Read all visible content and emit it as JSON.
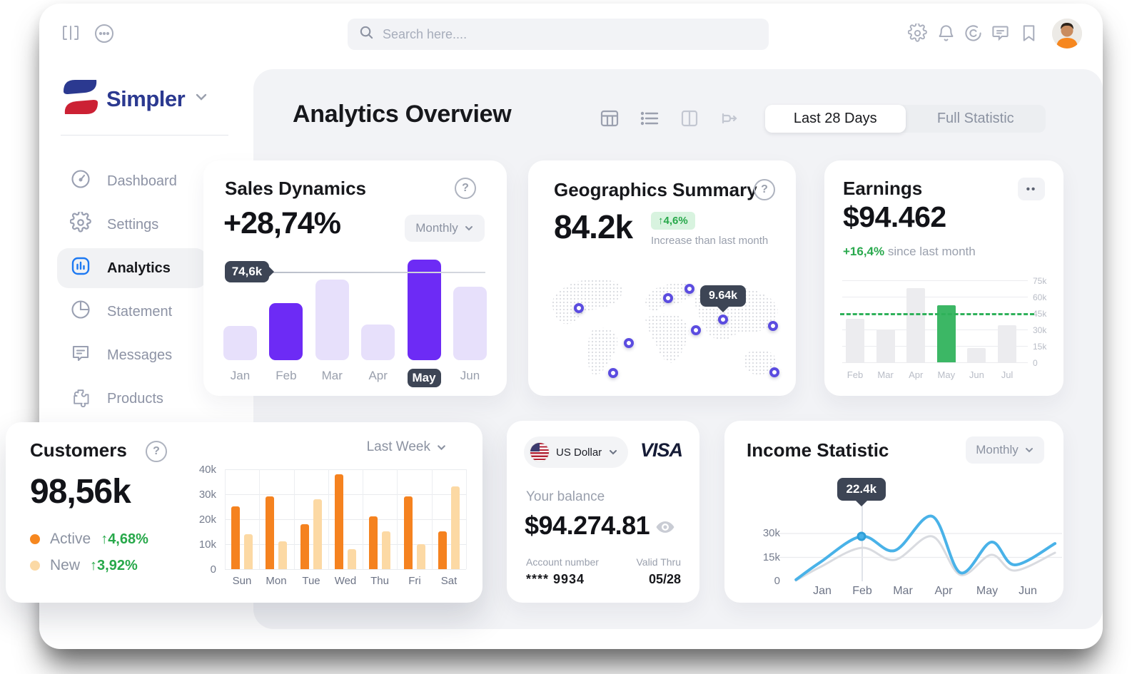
{
  "colors": {
    "accent_purple": "#6d2bf5",
    "light_purple": "#e7e0fb",
    "slate_tooltip": "#3d4555",
    "green": "#27a84a",
    "green_bar": "#3cb765",
    "orange": "#f6871f",
    "light_orange": "#fbd9a5",
    "blue_line": "#49b2e8",
    "gray_line": "#d9dbe0",
    "brand_navy": "#2b3990",
    "brand_red": "#cc2134",
    "active_icon_blue": "#1d79f2",
    "panel_bg": "#f2f3f6"
  },
  "topbar": {
    "search_placeholder": "Search here....",
    "icons_left": [
      "sidebar-toggle",
      "more-options"
    ],
    "icons_right": [
      "settings",
      "notifications",
      "copyright",
      "comments",
      "bookmarks"
    ]
  },
  "sidebar": {
    "brand": "Simpler",
    "items": [
      {
        "label": "Dashboard",
        "icon": "gauge",
        "active": false
      },
      {
        "label": "Settings",
        "icon": "gear",
        "active": false
      },
      {
        "label": "Analytics",
        "icon": "bars",
        "active": true
      },
      {
        "label": "Statement",
        "icon": "pie",
        "active": false
      },
      {
        "label": "Messages",
        "icon": "chat",
        "active": false
      },
      {
        "label": "Products",
        "icon": "puzzle",
        "active": false
      }
    ]
  },
  "header": {
    "title": "Analytics Overview",
    "range_active": "Last 28 Days",
    "range_inactive": "Full Statistic"
  },
  "cards": {
    "sales": {
      "title": "Sales Dynamics",
      "value": "+28,74%",
      "period": "Monthly",
      "tooltip": "74,6k"
    },
    "geo": {
      "title": "Geographics Summary",
      "value": "84.2k",
      "badge": "↑4,6%",
      "caption": "Increase than last month",
      "tooltip": "9.64k"
    },
    "earnings": {
      "title": "Earnings",
      "value": "$94.462",
      "delta": "+16,4%",
      "caption": " since last month",
      "more": "••"
    },
    "customers": {
      "title": "Customers",
      "value": "98,56k",
      "legend": [
        {
          "label": "Active",
          "delta": "↑4,68%"
        },
        {
          "label": "New",
          "delta": "↑3,92%"
        }
      ],
      "period": "Last Week"
    },
    "balance": {
      "currency": "US Dollar",
      "network": "VISA",
      "balance_label": "Your balance",
      "balance_value": "$94.274.81",
      "account_label": "Account number",
      "account_value": "**** 9934",
      "valid_label": "Valid Thru",
      "valid_value": "05/28"
    },
    "income": {
      "title": "Income Statistic",
      "period": "Monthly",
      "tooltip": "22.4k"
    }
  },
  "chart_data": [
    {
      "id": "sales",
      "type": "bar",
      "title": "Sales Dynamics",
      "categories": [
        "Jan",
        "Feb",
        "Mar",
        "Apr",
        "May",
        "Jun"
      ],
      "values": [
        29,
        48,
        68,
        30,
        85,
        62
      ],
      "unit": "k",
      "ylim": [
        0,
        85
      ],
      "highlighted": [
        "Feb",
        "May"
      ],
      "highlight_label": "May",
      "reference_line": 74.6,
      "reference_label": "74,6k",
      "grid": false,
      "legend_position": "none"
    },
    {
      "id": "earnings",
      "type": "bar",
      "title": "Earnings",
      "categories": [
        "Feb",
        "Mar",
        "Apr",
        "May",
        "Jun",
        "Jul"
      ],
      "values": [
        40,
        30,
        68,
        52,
        13,
        34
      ],
      "unit": "k",
      "ylim": [
        0,
        75
      ],
      "yticks": [
        "75k",
        "60k",
        "45k",
        "30k",
        "15k",
        "0"
      ],
      "highlighted": [
        "May"
      ],
      "dashed_line": 45,
      "grid": true,
      "legend_position": "none"
    },
    {
      "id": "customers",
      "type": "bar",
      "title": "Customers",
      "categories": [
        "Sun",
        "Mon",
        "Tue",
        "Wed",
        "Thu",
        "Fri",
        "Sat"
      ],
      "series": [
        {
          "name": "Active",
          "values": [
            25,
            29,
            18,
            38,
            21,
            29,
            15
          ]
        },
        {
          "name": "New",
          "values": [
            14,
            11,
            28,
            8,
            15,
            10,
            33
          ]
        }
      ],
      "unit": "k",
      "ylim": [
        0,
        40
      ],
      "yticks": [
        "40k",
        "30k",
        "20k",
        "10k",
        "0"
      ],
      "grid": true,
      "legend_position": "left"
    },
    {
      "id": "income",
      "type": "line",
      "title": "Income Statistic",
      "categories": [
        "Jan",
        "Feb",
        "Mar",
        "Apr",
        "May",
        "Jun"
      ],
      "yticks": [
        "30k",
        "15k",
        "0"
      ],
      "ylim": [
        0,
        45
      ],
      "unit": "k",
      "tooltip": {
        "label": "22.4k",
        "at_category": "Feb"
      },
      "series": [
        {
          "name": "income",
          "points": [
            [
              4,
              1
            ],
            [
              13,
              12
            ],
            [
              28.1,
              28.2
            ],
            [
              40.4,
              19.3
            ],
            [
              54.2,
              40.8
            ],
            [
              64.6,
              5.4
            ],
            [
              76,
              24.6
            ],
            [
              84.6,
              10.3
            ],
            [
              99.5,
              23.7
            ]
          ]
        },
        {
          "name": "previous",
          "points": [
            [
              4,
              0.5
            ],
            [
              13,
              9
            ],
            [
              28.1,
              21
            ],
            [
              40.4,
              13.4
            ],
            [
              54.2,
              28.2
            ],
            [
              64.6,
              4
            ],
            [
              76,
              16.6
            ],
            [
              84.6,
              6.7
            ],
            [
              99.5,
              17.9
            ]
          ]
        }
      ],
      "grid": true,
      "legend_position": "none"
    },
    {
      "id": "geo-map",
      "type": "scatter",
      "title": "Geographics Summary",
      "points_pct": [
        {
          "x": 15.6,
          "y": 32.5
        },
        {
          "x": 52.4,
          "y": 24.4
        },
        {
          "x": 61.2,
          "y": 16.9
        },
        {
          "x": 75.0,
          "y": 42.5
        },
        {
          "x": 63.8,
          "y": 51.2
        },
        {
          "x": 95.6,
          "y": 47.5
        },
        {
          "x": 36.2,
          "y": 61.9
        },
        {
          "x": 29.7,
          "y": 86.9
        },
        {
          "x": 96.2,
          "y": 86.3
        }
      ],
      "tooltip_point_index": 3
    }
  ]
}
